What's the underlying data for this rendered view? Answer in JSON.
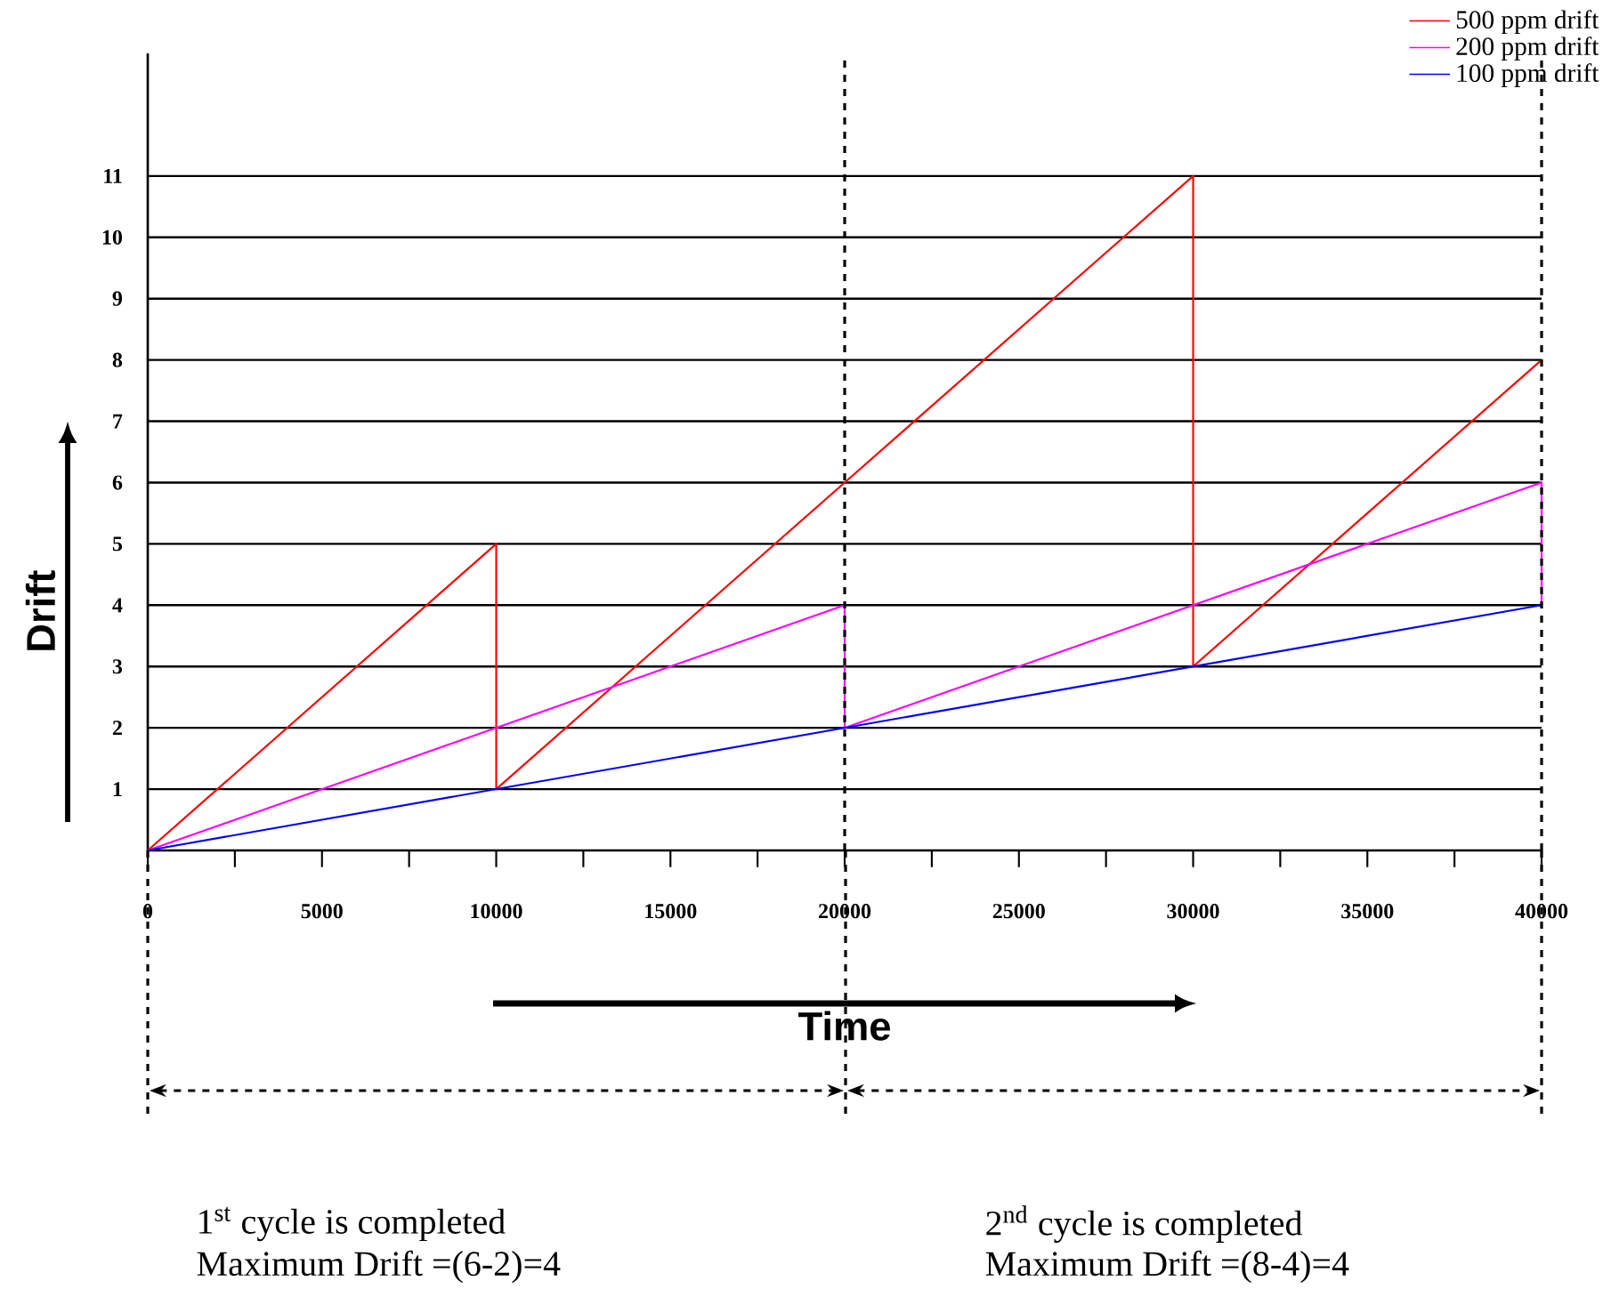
{
  "chart_data": {
    "type": "line",
    "xlabel": "Time",
    "ylabel": "Drift",
    "xlim": [
      0,
      40000
    ],
    "ylim": [
      0,
      13
    ],
    "xticks": [
      0,
      {
        "value": 2500,
        "label": null
      },
      5000,
      {
        "value": 7500,
        "label": null
      },
      10000,
      {
        "value": 12500,
        "label": null
      },
      15000,
      {
        "value": 17500,
        "label": null
      },
      20000,
      {
        "value": 22500,
        "label": null
      },
      25000,
      {
        "value": 27500,
        "label": null
      },
      30000,
      {
        "value": 32500,
        "label": null
      },
      35000,
      {
        "value": 37500,
        "label": null
      },
      40000
    ],
    "yticks": [
      1,
      2,
      3,
      4,
      5,
      6,
      7,
      8,
      9,
      10,
      11
    ],
    "grid": "y",
    "legend": "top right",
    "series": [
      {
        "name": "500 ppm drift",
        "color": "#ff0000",
        "x": [
          0,
          10000,
          10000,
          20000,
          30000,
          30000,
          40000
        ],
        "values": [
          0,
          5,
          1,
          6,
          11,
          3,
          8
        ]
      },
      {
        "name": "200 ppm drift",
        "color": "#ff00ff",
        "x": [
          0,
          20000,
          20000,
          40000,
          40000
        ],
        "values": [
          0,
          4,
          2,
          6,
          4
        ]
      },
      {
        "name": "100 ppm drift",
        "color": "#0000ff",
        "x": [
          0,
          40000
        ],
        "values": [
          0,
          4
        ]
      }
    ],
    "ref_lines": [
      {
        "axis": "x",
        "value": 20000,
        "color": "#000000",
        "line_style": "dashed"
      },
      {
        "axis": "x",
        "value": 40000,
        "color": "#000000",
        "line_style": "dashed"
      }
    ],
    "annotations": [
      "1$^{st}$ cycle is completed",
      "Maximum Drift =(6-2)=4",
      "2$^{nd}$ cycle is completed",
      "Maximum Drift =(8-4)=4"
    ]
  }
}
